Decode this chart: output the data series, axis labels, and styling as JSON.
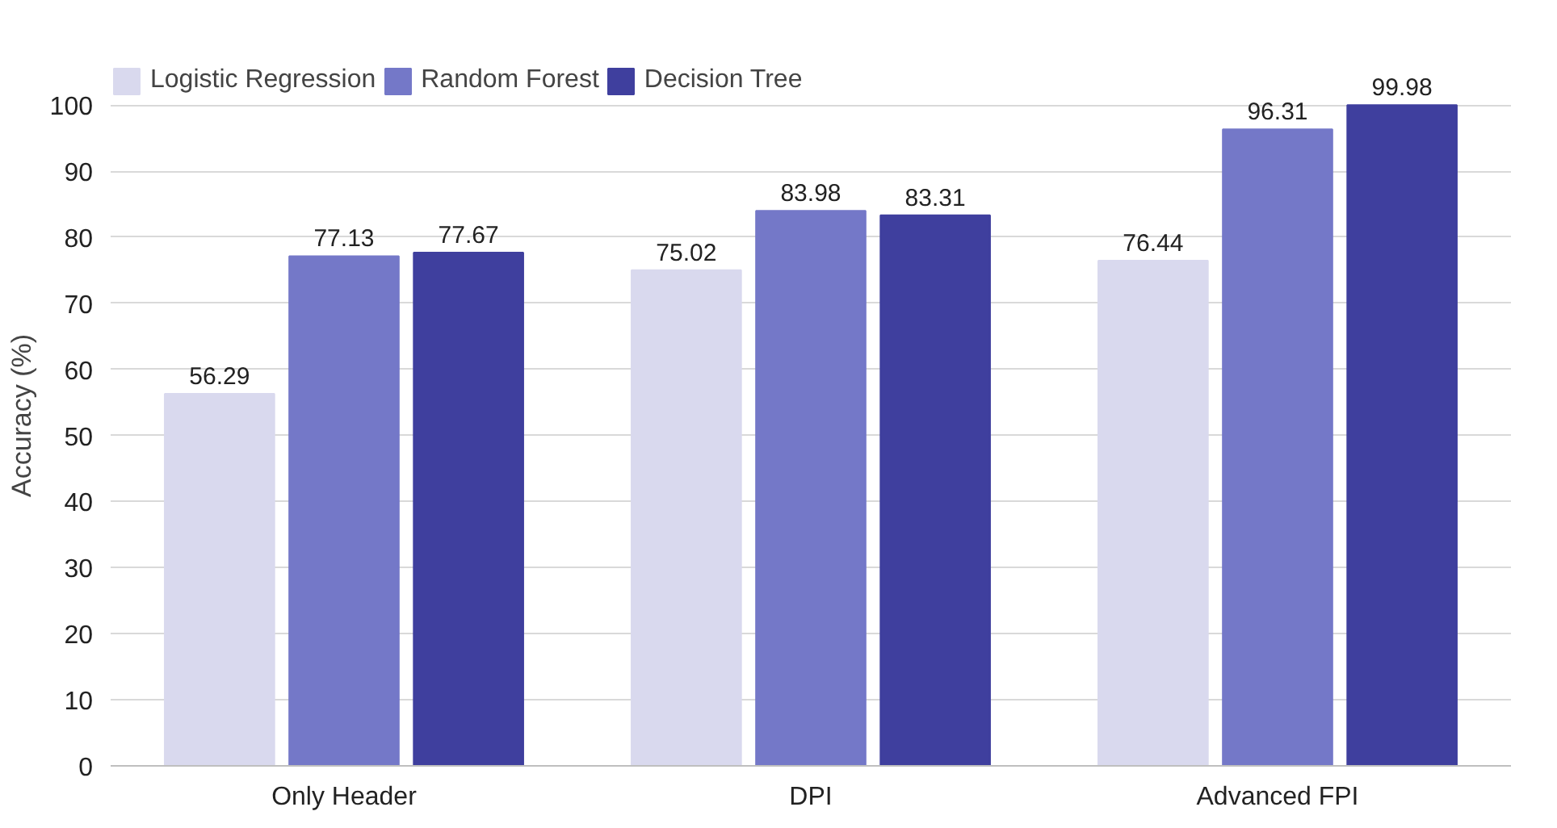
{
  "chart_data": {
    "type": "bar",
    "ylabel": "Accuracy (%)",
    "categories": [
      "Only Header",
      "DPI",
      "Advanced FPI"
    ],
    "series": [
      {
        "name": "Logistic Regression",
        "color": "#d9d9ee",
        "values": [
          56.29,
          75.02,
          76.44
        ]
      },
      {
        "name": "Random Forest",
        "color": "#7478c8",
        "values": [
          77.13,
          83.98,
          96.31
        ]
      },
      {
        "name": "Decision Tree",
        "color": "#3f3f9e",
        "values": [
          77.67,
          83.31,
          99.98
        ]
      }
    ],
    "ylim": [
      0,
      106
    ],
    "yticks": [
      0,
      10,
      20,
      30,
      40,
      50,
      60,
      70,
      80,
      90,
      100
    ],
    "grid": "y",
    "legend": "top",
    "data_labels": true
  }
}
